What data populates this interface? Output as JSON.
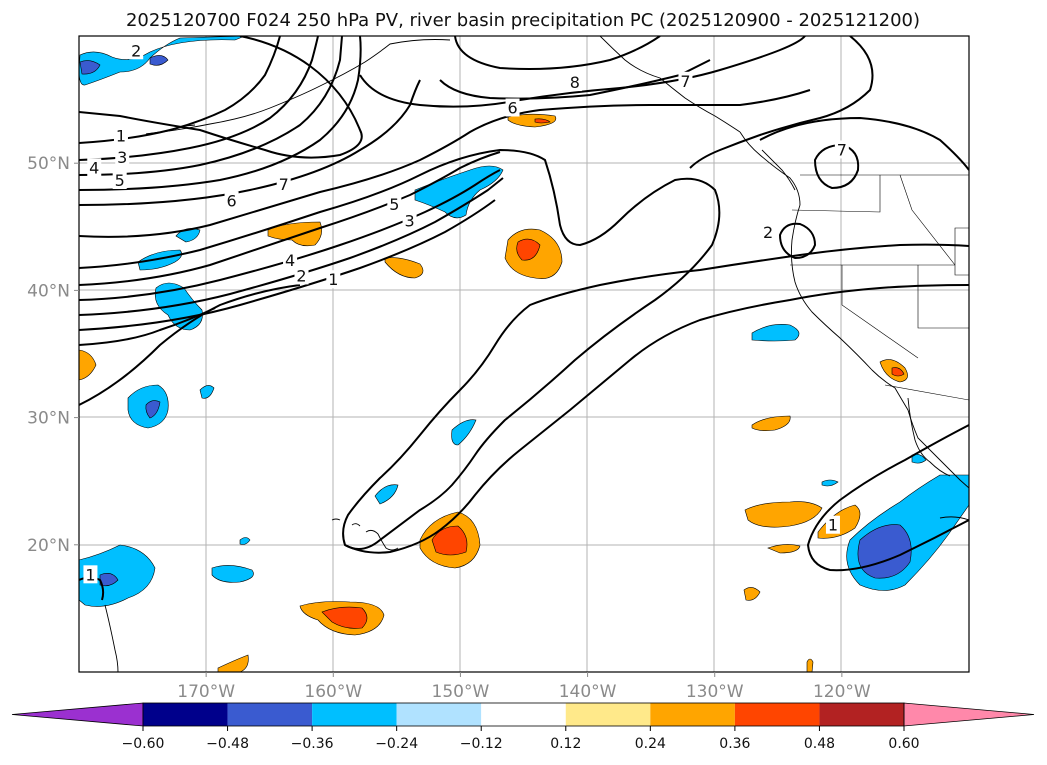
{
  "chart_data": {
    "type": "map-contour",
    "title": "2025120700 F024 250 hPa PV, river basin precipitation PC (2025120900 - 2025121200)",
    "lon_range": [
      -180,
      -110
    ],
    "lat_range": [
      10,
      60
    ],
    "lon_ticks": [
      {
        "value": -170,
        "label": "170°W"
      },
      {
        "value": -160,
        "label": "160°W"
      },
      {
        "value": -150,
        "label": "150°W"
      },
      {
        "value": -140,
        "label": "140°W"
      },
      {
        "value": -130,
        "label": "130°W"
      },
      {
        "value": -120,
        "label": "120°W"
      }
    ],
    "lat_ticks": [
      {
        "value": 20,
        "label": "20°N"
      },
      {
        "value": 30,
        "label": "30°N"
      },
      {
        "value": 40,
        "label": "40°N"
      },
      {
        "value": 50,
        "label": "50°N"
      }
    ],
    "grid": true,
    "pv_contour_labels": [
      {
        "text": "2",
        "lon": -175.5,
        "lat": 58.8
      },
      {
        "text": "1",
        "lon": -176.7,
        "lat": 52.1
      },
      {
        "text": "3",
        "lon": -176.6,
        "lat": 50.4
      },
      {
        "text": "4",
        "lon": -178.8,
        "lat": 49.6
      },
      {
        "text": "5",
        "lon": -176.8,
        "lat": 48.6
      },
      {
        "text": "6",
        "lon": -168.0,
        "lat": 47.0
      },
      {
        "text": "7",
        "lon": -163.9,
        "lat": 48.3
      },
      {
        "text": "8",
        "lon": -141.0,
        "lat": 56.3
      },
      {
        "text": "6",
        "lon": -145.9,
        "lat": 54.3
      },
      {
        "text": "7",
        "lon": -132.3,
        "lat": 56.4
      },
      {
        "text": "7",
        "lon": -120.0,
        "lat": 51.0
      },
      {
        "text": "5",
        "lon": -155.2,
        "lat": 46.7
      },
      {
        "text": "3",
        "lon": -154.0,
        "lat": 45.4
      },
      {
        "text": "4",
        "lon": -163.4,
        "lat": 42.3
      },
      {
        "text": "2",
        "lon": -162.5,
        "lat": 41.1
      },
      {
        "text": "1",
        "lon": -160.0,
        "lat": 40.8
      },
      {
        "text": "2",
        "lon": -125.8,
        "lat": 44.5
      },
      {
        "text": "1",
        "lon": -179.1,
        "lat": 17.6
      },
      {
        "text": "1",
        "lon": -120.7,
        "lat": 21.5
      }
    ],
    "precip_pc_regions": [
      {
        "lon": -178.8,
        "lat": 57.9,
        "value": -0.42
      },
      {
        "lon": -165.5,
        "lat": 58.5,
        "value": -0.42
      },
      {
        "lon": -152.0,
        "lat": 48.2,
        "value": -0.3
      },
      {
        "lon": -169.0,
        "lat": 39.1,
        "value": -0.3
      },
      {
        "lon": -169.7,
        "lat": 42.7,
        "value": -0.36
      },
      {
        "lon": -168.8,
        "lat": 45.0,
        "value": -0.24
      },
      {
        "lon": -174.4,
        "lat": 31.0,
        "value": -0.42
      },
      {
        "lon": -167.8,
        "lat": 32.0,
        "value": -0.24
      },
      {
        "lon": -150.8,
        "lat": 29.0,
        "value": -0.24
      },
      {
        "lon": -156.6,
        "lat": 24.2,
        "value": -0.24
      },
      {
        "lon": -128.2,
        "lat": 36.9,
        "value": -0.3
      },
      {
        "lon": -178.0,
        "lat": 17.4,
        "value": -0.42
      },
      {
        "lon": -168.0,
        "lat": 18.0,
        "value": -0.3
      },
      {
        "lon": -114.8,
        "lat": 20.0,
        "value": -0.48
      },
      {
        "lon": -163.0,
        "lat": 44.4,
        "value": 0.3
      },
      {
        "lon": -147.5,
        "lat": 52.5,
        "value": 0.3
      },
      {
        "lon": -153.5,
        "lat": 42.1,
        "value": 0.24
      },
      {
        "lon": -144.8,
        "lat": 43.0,
        "value": 0.42
      },
      {
        "lon": -179.5,
        "lat": 34.1,
        "value": 0.3
      },
      {
        "lon": -129.3,
        "lat": 29.1,
        "value": 0.24
      },
      {
        "lon": -130.1,
        "lat": 23.7,
        "value": 0.3
      },
      {
        "lon": -123.6,
        "lat": 23.6,
        "value": 0.3
      },
      {
        "lon": -128.4,
        "lat": 20.1,
        "value": 0.24
      },
      {
        "lon": -116.1,
        "lat": 33.9,
        "value": 0.36
      },
      {
        "lon": -150.5,
        "lat": 20.6,
        "value": 0.42
      },
      {
        "lon": -158.5,
        "lat": 14.5,
        "value": 0.42
      },
      {
        "lon": -131.0,
        "lat": 16.3,
        "value": 0.24
      },
      {
        "lon": -167.5,
        "lat": 10.6,
        "value": 0.24
      }
    ],
    "colorbar": {
      "ticks": [
        "−0.60",
        "−0.48",
        "−0.36",
        "−0.24",
        "−0.12",
        "0.12",
        "0.24",
        "0.36",
        "0.48",
        "0.60"
      ],
      "colors": [
        "#9b30d0",
        "#00008b",
        "#3a5bd0",
        "#00bfff",
        "#b0e2ff",
        "#ffffff",
        "#ffe98a",
        "#ffa500",
        "#ff4500",
        "#b22222",
        "#ff88aa"
      ],
      "extend": "both"
    }
  }
}
